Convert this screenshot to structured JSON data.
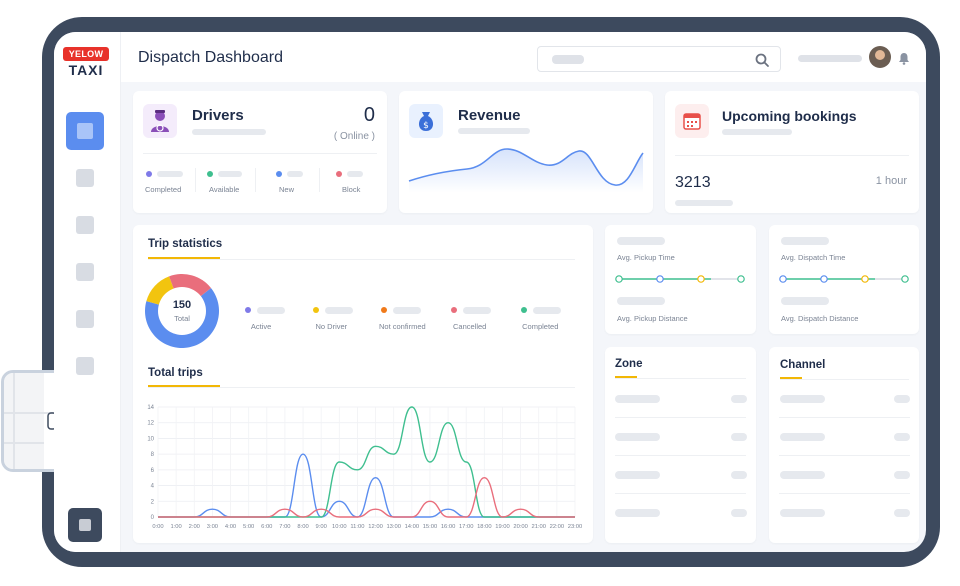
{
  "app": {
    "logo_top": "YELOW",
    "logo_bottom": "TAXI",
    "title": "Dispatch Dashboard"
  },
  "icons": {
    "search": "search-icon",
    "bell": "bell-icon",
    "driver": "driver-icon",
    "revenue": "money-bag-icon",
    "calendar": "calendar-icon",
    "car": "car-icon"
  },
  "colors": {
    "accent_blue": "#5b8def",
    "accent_yellow": "#f2b705",
    "active": "#7f7ae8",
    "no_driver": "#f2c40f",
    "not_confirmed": "#f07a1a",
    "cancelled": "#e96e7c",
    "completed": "#3fbf8f"
  },
  "drivers": {
    "title": "Drivers",
    "count": "0",
    "online_label": "( Online )",
    "stats": [
      {
        "label": "Completed",
        "color": "#7f7ae8"
      },
      {
        "label": "Available",
        "color": "#3fbf8f"
      },
      {
        "label": "New",
        "color": "#5b8def"
      },
      {
        "label": "Block",
        "color": "#e96e7c"
      }
    ]
  },
  "revenue": {
    "title": "Revenue"
  },
  "bookings": {
    "title": "Upcoming bookings",
    "count": "3213",
    "period": "1 hour"
  },
  "trip_stats": {
    "title": "Trip statistics",
    "total_value": "150",
    "total_label": "Total",
    "legend": [
      {
        "label": "Active",
        "color": "#7f7ae8"
      },
      {
        "label": "No Driver",
        "color": "#f2c40f"
      },
      {
        "label": "Not confirmed",
        "color": "#f07a1a"
      },
      {
        "label": "Cancelled",
        "color": "#e96e7c"
      },
      {
        "label": "Completed",
        "color": "#3fbf8f"
      }
    ]
  },
  "total_trips": {
    "title": "Total trips"
  },
  "pickup": {
    "time_label": "Avg. Pickup Time",
    "distance_label": "Avg. Pickup Distance"
  },
  "dispatch": {
    "time_label": "Avg. Dispatch Time",
    "distance_label": "Avg. Dispatch Distance"
  },
  "zone": {
    "title": "Zone"
  },
  "channel": {
    "title": "Channel"
  },
  "chart_data": {
    "type": "line",
    "x": [
      "0:00",
      "1:00",
      "2:00",
      "3:00",
      "4:00",
      "5:00",
      "6:00",
      "7:00",
      "8:00",
      "9:00",
      "10:00",
      "11:00",
      "12:00",
      "13:00",
      "14:00",
      "15:00",
      "16:00",
      "17:00",
      "18:00",
      "19:00",
      "20:00",
      "21:00",
      "22:00",
      "23:00"
    ],
    "ylim": [
      0,
      14
    ],
    "yticks": [
      0,
      2,
      4,
      6,
      8,
      10,
      12,
      14
    ],
    "grid": true,
    "series": [
      {
        "color": "#5b8def",
        "values": [
          0,
          0,
          0,
          1,
          0,
          0,
          0,
          0,
          8,
          0,
          2,
          0,
          5,
          0,
          0,
          0,
          1,
          0,
          0,
          0,
          0,
          0,
          0,
          0
        ]
      },
      {
        "color": "#3fbf8f",
        "values": [
          0,
          0,
          0,
          0,
          0,
          0,
          0,
          0,
          0,
          0,
          7,
          6,
          9,
          8,
          14,
          7,
          12,
          7,
          0,
          0,
          0,
          0,
          0,
          0
        ]
      },
      {
        "color": "#e96e7c",
        "values": [
          0,
          0,
          0,
          0,
          0,
          0,
          0,
          1,
          0,
          1,
          0,
          0,
          1,
          0,
          0,
          2,
          0,
          0,
          5,
          0,
          1,
          0,
          0,
          0
        ]
      }
    ],
    "donut": [
      {
        "value": 65,
        "color": "#5b8def"
      },
      {
        "value": 15,
        "color": "#f2c40f"
      },
      {
        "value": 20,
        "color": "#e96e7c"
      }
    ]
  }
}
